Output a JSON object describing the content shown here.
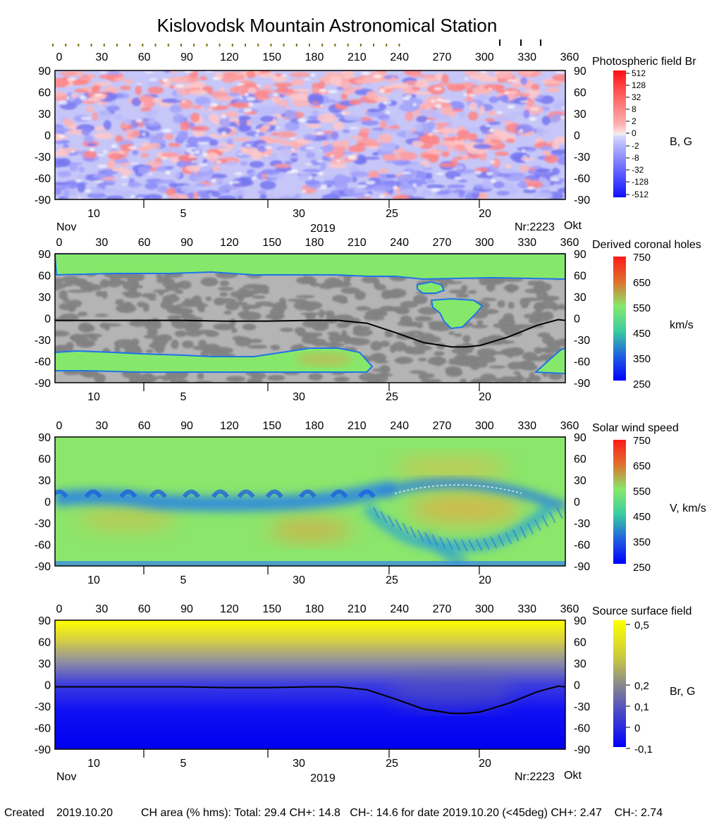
{
  "title": "Kislovodsk Mountain Astronomical Station",
  "footer": {
    "created_label": "Created",
    "created_date": "2019.10.20",
    "ch_area_text": "CH area (% hms): Total: 29.4 CH+: 14.8   CH-: 14.6 for date 2019.10.20 (<45deg) CH+: 2.47    CH-: 2.74"
  },
  "axes": {
    "longitude_ticks": [
      "0",
      "30",
      "60",
      "90",
      "120",
      "150",
      "180",
      "210",
      "240",
      "270",
      "300",
      "330",
      "360"
    ],
    "latitude_ticks": [
      "90",
      "60",
      "30",
      "0",
      "-30",
      "-60",
      "-90"
    ],
    "date_ticks": [
      "10",
      "5",
      "30",
      "25",
      "20"
    ],
    "month_left": "Nov",
    "month_right": "Okt",
    "year": "2019",
    "rotation": "Nr:2223"
  },
  "chart_data": [
    {
      "type": "heatmap",
      "name": "photospheric",
      "title": "Photospheric field Br",
      "colorbar_label": "B, G",
      "colorbar_ticks": [
        "512",
        "128",
        "32",
        "8",
        "2",
        "0",
        "-2",
        "-8",
        "-32",
        "-128",
        "-512"
      ],
      "x_range": [
        0,
        360
      ],
      "y_range": [
        -90,
        90
      ],
      "pattern": "mixed polarity; positive (red) cap near +90, negative (blue) belt near -60 to -90"
    },
    {
      "type": "heatmap",
      "name": "coronal_holes",
      "title": "Derived coronal holes",
      "colorbar_label": "km/s",
      "colorbar_ticks": [
        "750",
        "650",
        "550",
        "450",
        "350",
        "250"
      ],
      "x_range": [
        0,
        360
      ],
      "y_range": [
        -90,
        90
      ],
      "neutral_line": {
        "x": [
          0,
          30,
          60,
          90,
          120,
          150,
          180,
          200,
          220,
          240,
          260,
          280,
          290,
          300,
          320,
          340,
          355,
          360
        ],
        "y": [
          -3,
          -3,
          -3,
          -3,
          -4,
          -4,
          -3,
          -3,
          -7,
          -20,
          -34,
          -40,
          -40,
          -38,
          -26,
          -10,
          -2,
          -3
        ]
      }
    },
    {
      "type": "heatmap",
      "name": "solar_wind",
      "title": "Solar wind speed",
      "colorbar_label": "V, km/s",
      "colorbar_ticks": [
        "750",
        "650",
        "550",
        "450",
        "350",
        "250"
      ],
      "x_range": [
        0,
        360
      ],
      "y_range": [
        -90,
        90
      ]
    },
    {
      "type": "heatmap",
      "name": "source_surface",
      "title": "Source surface field",
      "colorbar_label": "Br, G",
      "colorbar_ticks": [
        "0,5",
        "0,2",
        "0,1",
        "0",
        "-0,1"
      ],
      "x_range": [
        0,
        360
      ],
      "y_range": [
        -90,
        90
      ],
      "neutral_line": {
        "x": [
          0,
          30,
          60,
          90,
          120,
          150,
          180,
          200,
          220,
          240,
          260,
          280,
          290,
          300,
          320,
          340,
          355,
          360
        ],
        "y": [
          -3,
          -3,
          -3,
          -3,
          -4,
          -4,
          -3,
          -3,
          -7,
          -20,
          -34,
          -40,
          -40,
          -38,
          -26,
          -10,
          -2,
          -3
        ]
      }
    }
  ],
  "colors": {
    "ch_green": "#86e86a",
    "grey_light": "#b4b4b4",
    "grey_dark": "#828282",
    "sw_green": "#8ce66c",
    "ss_yellow": "#ffff00",
    "ss_blue": "#0000f0"
  }
}
